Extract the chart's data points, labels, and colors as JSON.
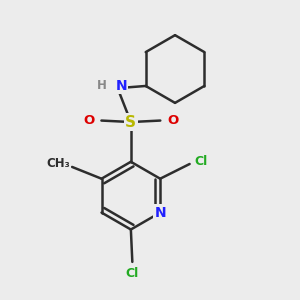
{
  "bg_color": "#ececec",
  "bond_color": "#2d2d2d",
  "N_color": "#2020ff",
  "S_color": "#b8b800",
  "O_color": "#dd0000",
  "Cl_color": "#22aa22",
  "H_color": "#888888",
  "C_color": "#2d2d2d",
  "bond_width": 1.8,
  "fig_width": 3.0,
  "fig_height": 3.0,
  "dpi": 100,
  "xlim": [
    0.0,
    1.0
  ],
  "ylim": [
    0.0,
    1.0
  ]
}
